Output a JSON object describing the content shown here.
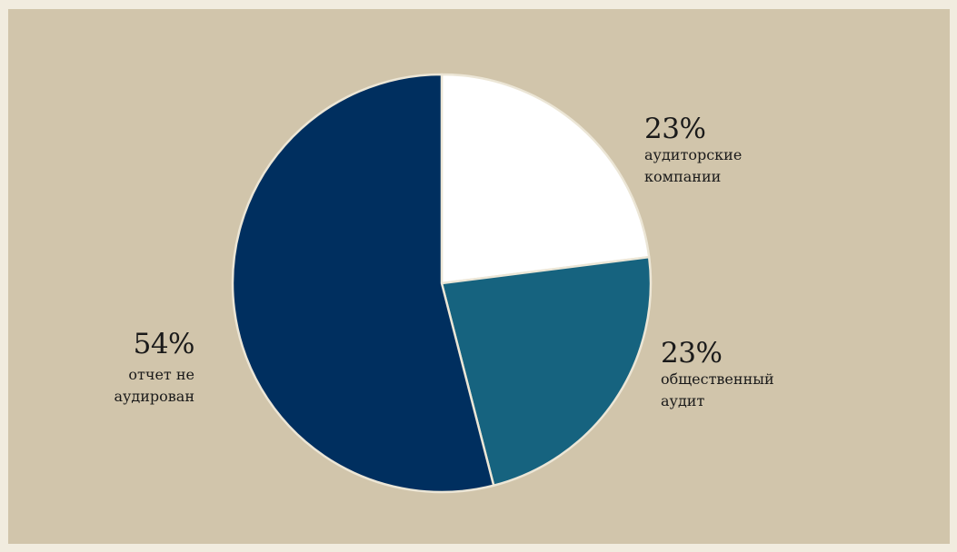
{
  "chart_data": {
    "type": "pie",
    "slices": [
      {
        "label": "аудиторские компании",
        "value": 23,
        "value_label": "23%",
        "color": "#ffffff"
      },
      {
        "label": "общественный аудит",
        "value": 23,
        "value_label": "23%",
        "color": "#16637f"
      },
      {
        "label": "отчет не аудирован",
        "value": 54,
        "value_label": "54%",
        "color": "#002f5f"
      }
    ]
  },
  "colors": {
    "page_border": "#f1ecdf",
    "panel_background": "#d1c5ab",
    "slice_stroke": "#ece6d6"
  }
}
